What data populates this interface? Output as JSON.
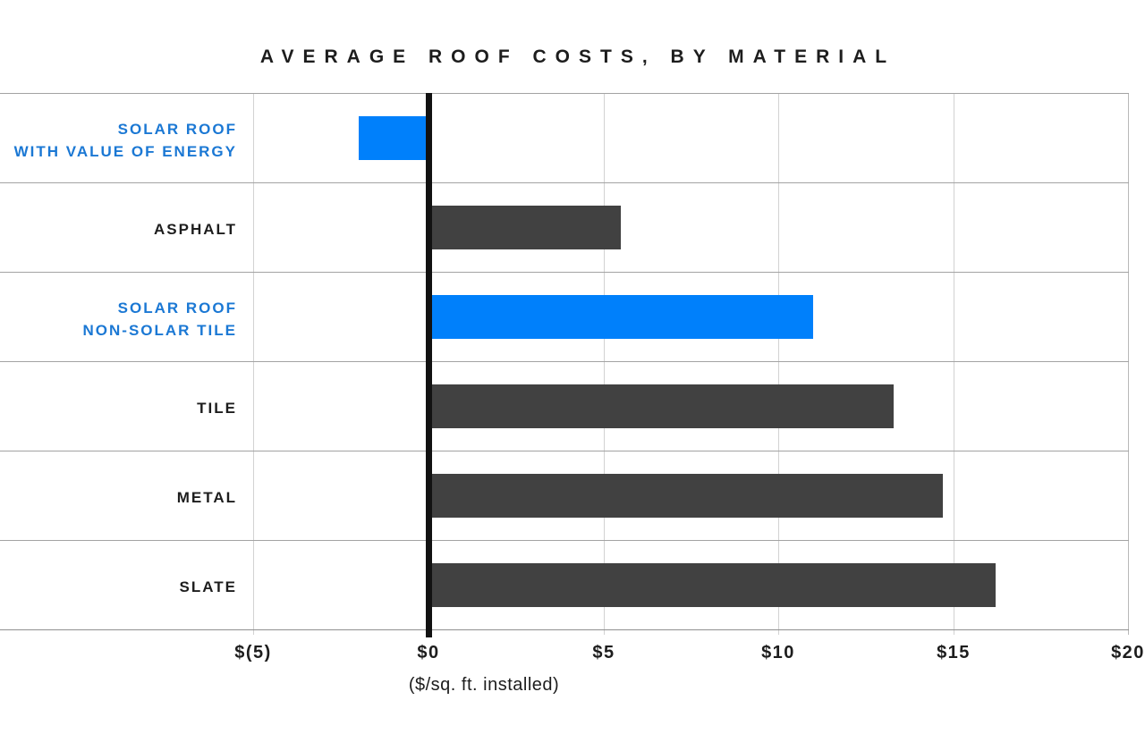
{
  "chart_data": {
    "type": "bar",
    "orientation": "horizontal",
    "title": "AVERAGE ROOF COSTS, BY MATERIAL",
    "xlabel": "($/sq. ft. installed)",
    "xlim": [
      -5,
      20
    ],
    "grid": true,
    "legend": "none",
    "categories": [
      "SOLAR ROOF WITH VALUE OF ENERGY",
      "ASPHALT",
      "SOLAR ROOF NON-SOLAR TILE",
      "TILE",
      "METAL",
      "SLATE"
    ],
    "label_lines": [
      [
        "SOLAR ROOF",
        "WITH VALUE OF ENERGY"
      ],
      [
        "ASPHALT"
      ],
      [
        "SOLAR ROOF",
        "NON-SOLAR TILE"
      ],
      [
        "TILE"
      ],
      [
        "METAL"
      ],
      [
        "SLATE"
      ]
    ],
    "values": [
      -2.0,
      5.5,
      11.0,
      13.3,
      14.7,
      16.2
    ],
    "bar_color_keys": [
      "bar_blue",
      "bar_dark",
      "bar_blue",
      "bar_dark",
      "bar_dark",
      "bar_dark"
    ],
    "label_color_keys": [
      "label_blue",
      "text_dark",
      "label_blue",
      "text_dark",
      "text_dark",
      "text_dark"
    ],
    "x_ticks": [
      {
        "label": "$(5)",
        "value": -5
      },
      {
        "label": "$0",
        "value": 0
      },
      {
        "label": "$5",
        "value": 5
      },
      {
        "label": "$10",
        "value": 10
      },
      {
        "label": "$15",
        "value": 15
      },
      {
        "label": "$20",
        "value": 20
      }
    ]
  },
  "colors": {
    "bar_blue": "#0080fb",
    "bar_dark": "#414141",
    "label_blue": "#1b78d4",
    "text_dark": "#1d1d1d",
    "gridline": "#d2d2d2",
    "right_border": "#b8b8b8",
    "row_line": "#a3a3a3",
    "axis_line": "#8f8f8f",
    "zero_line": "#121212"
  }
}
